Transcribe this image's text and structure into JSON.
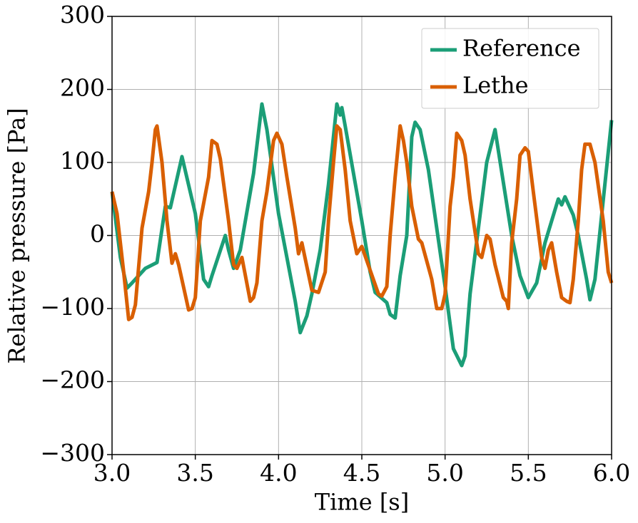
{
  "chart_data": {
    "type": "line",
    "xlabel": "Time [s]",
    "ylabel": "Relative pressure [Pa]",
    "xlim": [
      3.0,
      6.0
    ],
    "ylim": [
      -300,
      300
    ],
    "xticks": [
      {
        "value": 3.0,
        "label": "3.0"
      },
      {
        "value": 3.5,
        "label": "3.5"
      },
      {
        "value": 4.0,
        "label": "4.0"
      },
      {
        "value": 4.5,
        "label": "4.5"
      },
      {
        "value": 5.0,
        "label": "5.0"
      },
      {
        "value": 5.5,
        "label": "5.5"
      },
      {
        "value": 6.0,
        "label": "6.0"
      }
    ],
    "yticks": [
      {
        "value": -300,
        "label": "−300"
      },
      {
        "value": -200,
        "label": "−200"
      },
      {
        "value": -100,
        "label": "−100"
      },
      0,
      100,
      200,
      300
    ],
    "grid": true,
    "legend": "upper right",
    "series": [
      {
        "name": "Reference",
        "color": "#1b9e77",
        "x": [
          3.0,
          3.05,
          3.09,
          3.12,
          3.2,
          3.27,
          3.32,
          3.35,
          3.42,
          3.5,
          3.55,
          3.58,
          3.6,
          3.68,
          3.7,
          3.73,
          3.77,
          3.85,
          3.9,
          3.93,
          4.0,
          4.05,
          4.1,
          4.13,
          4.17,
          4.2,
          4.25,
          4.3,
          4.35,
          4.37,
          4.38,
          4.4,
          4.5,
          4.55,
          4.58,
          4.65,
          4.67,
          4.7,
          4.73,
          4.77,
          4.8,
          4.82,
          4.85,
          4.9,
          5.0,
          5.05,
          5.1,
          5.12,
          5.15,
          5.25,
          5.3,
          5.4,
          5.45,
          5.5,
          5.55,
          5.6,
          5.68,
          5.7,
          5.72,
          5.77,
          5.8,
          5.85,
          5.87,
          5.9,
          6.0
        ],
        "values": [
          60,
          -30,
          -72,
          -65,
          -45,
          -37,
          40,
          38,
          108,
          30,
          -60,
          -70,
          -55,
          0,
          -20,
          -45,
          -20,
          85,
          180,
          145,
          30,
          -30,
          -90,
          -133,
          -110,
          -80,
          -20,
          70,
          180,
          165,
          175,
          150,
          20,
          -50,
          -78,
          -92,
          -108,
          -113,
          -55,
          0,
          135,
          155,
          145,
          90,
          -70,
          -155,
          -178,
          -165,
          -80,
          100,
          145,
          0,
          -55,
          -85,
          -65,
          -10,
          50,
          42,
          53,
          28,
          0,
          -60,
          -88,
          -60,
          158
        ]
      },
      {
        "name": "Lethe",
        "color": "#d95f02",
        "x": [
          3.0,
          3.03,
          3.07,
          3.1,
          3.12,
          3.14,
          3.18,
          3.22,
          3.24,
          3.26,
          3.27,
          3.3,
          3.33,
          3.36,
          3.38,
          3.4,
          3.46,
          3.48,
          3.5,
          3.53,
          3.58,
          3.6,
          3.63,
          3.65,
          3.7,
          3.73,
          3.75,
          3.78,
          3.83,
          3.85,
          3.87,
          3.9,
          3.93,
          3.97,
          3.99,
          4.02,
          4.05,
          4.1,
          4.12,
          4.14,
          4.2,
          4.24,
          4.28,
          4.3,
          4.33,
          4.35,
          4.37,
          4.4,
          4.43,
          4.47,
          4.5,
          4.6,
          4.62,
          4.65,
          4.67,
          4.7,
          4.73,
          4.75,
          4.77,
          4.8,
          4.84,
          4.86,
          4.92,
          4.95,
          4.98,
          5.0,
          5.03,
          5.05,
          5.07,
          5.1,
          5.12,
          5.15,
          5.2,
          5.22,
          5.25,
          5.27,
          5.3,
          5.35,
          5.37,
          5.38,
          5.4,
          5.43,
          5.45,
          5.48,
          5.5,
          5.53,
          5.58,
          5.6,
          5.62,
          5.64,
          5.67,
          5.7,
          5.73,
          5.75,
          5.77,
          5.8,
          5.82,
          5.84,
          5.87,
          5.9,
          5.95,
          5.98,
          6.0
        ],
        "values": [
          60,
          30,
          -50,
          -115,
          -112,
          -95,
          10,
          60,
          100,
          145,
          150,
          100,
          20,
          -38,
          -25,
          -40,
          -102,
          -100,
          -85,
          20,
          80,
          130,
          125,
          105,
          20,
          -40,
          -45,
          -30,
          -90,
          -85,
          -65,
          20,
          60,
          130,
          140,
          125,
          80,
          10,
          -25,
          -10,
          -75,
          -78,
          -50,
          20,
          100,
          150,
          145,
          90,
          20,
          -25,
          -15,
          -80,
          -83,
          -70,
          0,
          80,
          150,
          130,
          100,
          40,
          -5,
          -10,
          -60,
          -100,
          -100,
          -80,
          40,
          80,
          140,
          130,
          110,
          50,
          -25,
          -30,
          0,
          -5,
          -40,
          -85,
          -90,
          -100,
          -10,
          50,
          110,
          120,
          115,
          60,
          -30,
          -45,
          -20,
          -10,
          -50,
          -85,
          -90,
          -92,
          -60,
          20,
          90,
          125,
          125,
          100,
          20,
          -50,
          -65
        ]
      }
    ]
  }
}
